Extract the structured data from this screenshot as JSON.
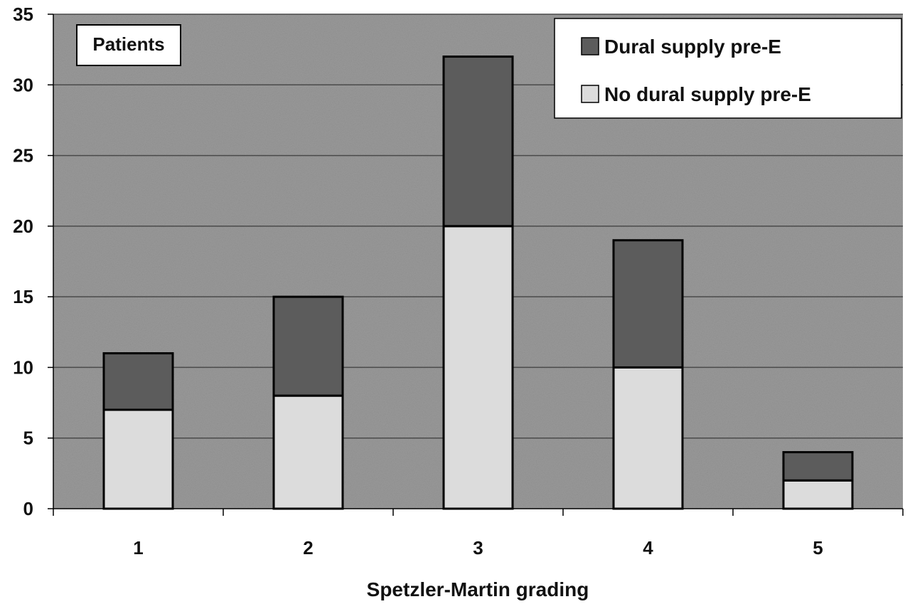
{
  "chart_data": {
    "type": "bar",
    "stacked": true,
    "categories": [
      "1",
      "2",
      "3",
      "4",
      "5"
    ],
    "series": [
      {
        "name": "No dural supply pre-E",
        "values": [
          7,
          8,
          20,
          10,
          2
        ]
      },
      {
        "name": "Dural supply pre-E",
        "values": [
          4,
          7,
          12,
          9,
          2
        ]
      }
    ],
    "legend_order": [
      "Dural supply pre-E",
      "No dural supply pre-E"
    ],
    "ylabel": "Patients",
    "xlabel": "Spetzler-Martin grading",
    "ylim": [
      0,
      35
    ],
    "yticks": [
      "0",
      "5",
      "10",
      "15",
      "20",
      "25",
      "30",
      "35"
    ],
    "grid": true,
    "legend_position": "top-right",
    "colors": {
      "Dural supply pre-E": "#5c5c5c",
      "No dural supply pre-E": "#dcdcdc",
      "plot_background": "#9a9a9a",
      "gridline": "#4a4a4a"
    }
  }
}
